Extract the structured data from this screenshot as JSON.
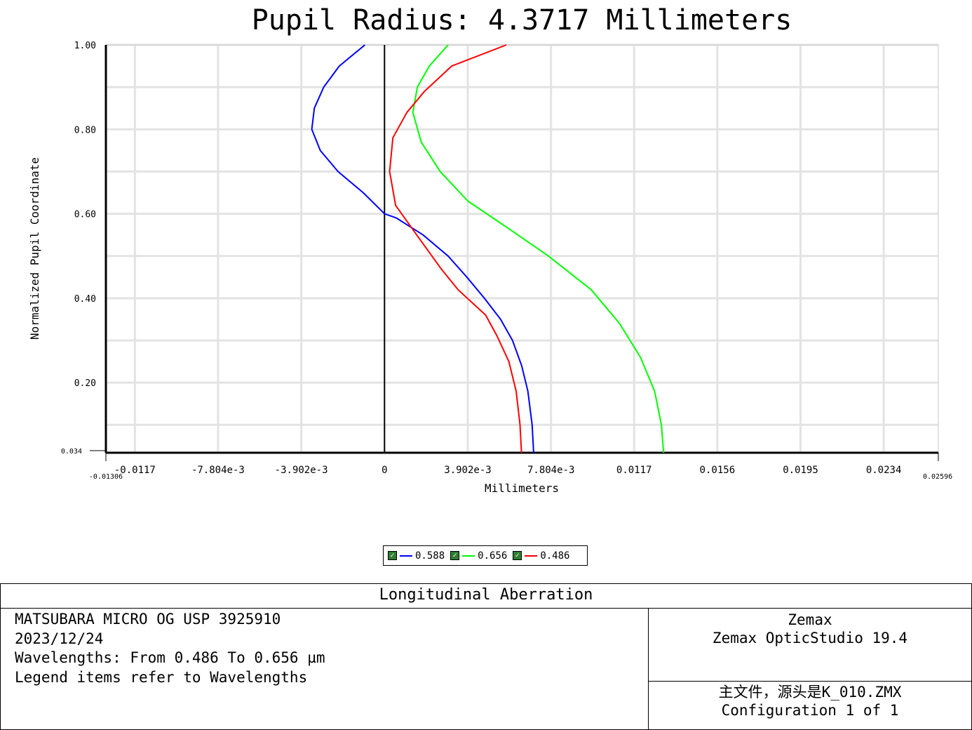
{
  "chart_data": {
    "type": "line",
    "title": "Pupil Radius: 4.3717 Millimeters",
    "xlabel": "Millimeters",
    "ylabel": "Normalized Pupil Coordinate",
    "xlim": [
      -0.01306,
      0.02596
    ],
    "ylim": [
      0.034,
      1.0
    ],
    "x_ticks": [
      -0.0117,
      -0.007804,
      -0.003902,
      0,
      0.003902,
      0.007804,
      0.0117,
      0.0156,
      0.0195,
      0.0234
    ],
    "x_tick_labels": [
      "-0.0117",
      "-7.804e-3",
      "-3.902e-3",
      "0",
      "3.902e-3",
      "7.804e-3",
      "0.0117",
      "0.0156",
      "0.0195",
      "0.0234"
    ],
    "x_min_label": "-0.01306",
    "x_max_label": "0.02596",
    "y_ticks": [
      0.2,
      0.4,
      0.6,
      0.8,
      1.0
    ],
    "y_tick_labels": [
      "0.20",
      "0.40",
      "0.60",
      "0.80",
      "1.00"
    ],
    "y_min_label": "0.034",
    "grid": true,
    "legend_position": "bottom-center",
    "series": [
      {
        "name": "0.588",
        "color": "#0000ff",
        "points": [
          [
            0.00699,
            0.034
          ],
          [
            0.00692,
            0.1
          ],
          [
            0.00672,
            0.18
          ],
          [
            0.00643,
            0.24
          ],
          [
            0.006,
            0.3
          ],
          [
            0.00544,
            0.35
          ],
          [
            0.00468,
            0.4
          ],
          [
            0.00386,
            0.45
          ],
          [
            0.00298,
            0.5
          ],
          [
            0.00181,
            0.55
          ],
          [
            0.00056,
            0.59
          ],
          [
            0.0,
            0.6
          ],
          [
            -0.001,
            0.65
          ],
          [
            -0.00218,
            0.7
          ],
          [
            -0.00301,
            0.75
          ],
          [
            -0.00341,
            0.8
          ],
          [
            -0.00329,
            0.85
          ],
          [
            -0.00285,
            0.9
          ],
          [
            -0.00212,
            0.95
          ],
          [
            -0.00092,
            1.0
          ]
        ]
      },
      {
        "name": "0.656",
        "color": "#00ff00",
        "points": [
          [
            0.01308,
            0.034
          ],
          [
            0.01298,
            0.1
          ],
          [
            0.01266,
            0.18
          ],
          [
            0.012,
            0.26
          ],
          [
            0.01102,
            0.34
          ],
          [
            0.00969,
            0.42
          ],
          [
            0.00768,
            0.5
          ],
          [
            0.00596,
            0.56
          ],
          [
            0.00391,
            0.63
          ],
          [
            0.00261,
            0.7
          ],
          [
            0.00172,
            0.77
          ],
          [
            0.00133,
            0.84
          ],
          [
            0.00154,
            0.9
          ],
          [
            0.0021,
            0.95
          ],
          [
            0.00298,
            1.0
          ]
        ]
      },
      {
        "name": "0.486",
        "color": "#ff0000",
        "points": [
          [
            0.00642,
            0.034
          ],
          [
            0.00635,
            0.1
          ],
          [
            0.00617,
            0.18
          ],
          [
            0.00583,
            0.25
          ],
          [
            0.00528,
            0.31
          ],
          [
            0.00474,
            0.36
          ],
          [
            0.00345,
            0.42
          ],
          [
            0.00265,
            0.47
          ],
          [
            0.00151,
            0.55
          ],
          [
            0.00052,
            0.62
          ],
          [
            0.00024,
            0.7
          ],
          [
            0.00039,
            0.78
          ],
          [
            0.00105,
            0.84
          ],
          [
            0.00187,
            0.89
          ],
          [
            0.00315,
            0.95
          ],
          [
            0.00571,
            1.0
          ]
        ]
      }
    ]
  },
  "legend": {
    "items": [
      {
        "label": "0.588",
        "color": "#0000ff"
      },
      {
        "label": "0.656",
        "color": "#00ff00"
      },
      {
        "label": "0.486",
        "color": "#ff0000"
      }
    ]
  },
  "info": {
    "title": "Longitudinal Aberration",
    "left_lines": [
      "MATSUBARA MICRO OG USP 3925910",
      "2023/12/24",
      "Wavelengths: From 0.486 To 0.656 µm",
      "Legend items refer to Wavelengths"
    ],
    "right_top_lines": [
      "Zemax",
      "Zemax OpticStudio 19.4"
    ],
    "right_bottom_lines": [
      "主文件，源头是K_010.ZMX",
      "Configuration 1 of 1"
    ]
  }
}
